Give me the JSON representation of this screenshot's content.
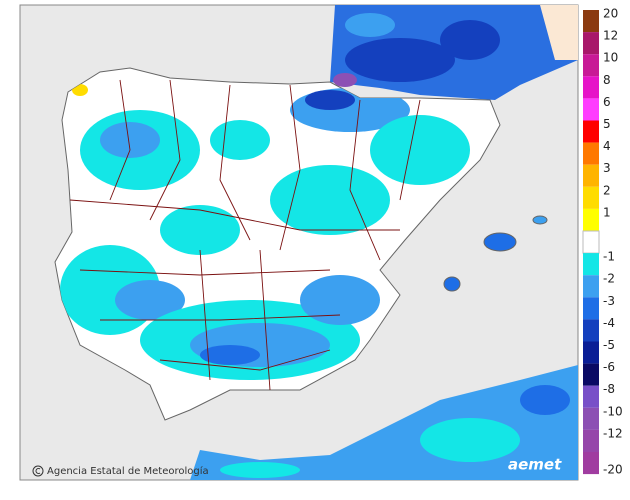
{
  "credit": "Agencia Estatal de Meteorología",
  "logo": "aemet",
  "legend": [
    {
      "value": 20,
      "color": "#8b3a10"
    },
    {
      "value": 12,
      "color": "#a8186a"
    },
    {
      "value": 10,
      "color": "#c81a96"
    },
    {
      "value": 8,
      "color": "#e614c8"
    },
    {
      "value": 6,
      "color": "#ff3cff"
    },
    {
      "value": 5,
      "color": "#ff0000"
    },
    {
      "value": 4,
      "color": "#ff7800"
    },
    {
      "value": 3,
      "color": "#ffb400"
    },
    {
      "value": 2,
      "color": "#ffdc00"
    },
    {
      "value": 1,
      "color": "#ffff00"
    },
    {
      "value": -1,
      "color": "#14e6e6"
    },
    {
      "value": -2,
      "color": "#3ca0f0"
    },
    {
      "value": -3,
      "color": "#1e6ee6"
    },
    {
      "value": -4,
      "color": "#1440be"
    },
    {
      "value": -5,
      "color": "#0a1e96"
    },
    {
      "value": -6,
      "color": "#0a0a64"
    },
    {
      "value": -8,
      "color": "#7850c8"
    },
    {
      "value": -10,
      "color": "#8c50b4"
    },
    {
      "value": -12,
      "color": "#9646aa"
    },
    {
      "value": -20,
      "color": "#a03ca0"
    }
  ]
}
